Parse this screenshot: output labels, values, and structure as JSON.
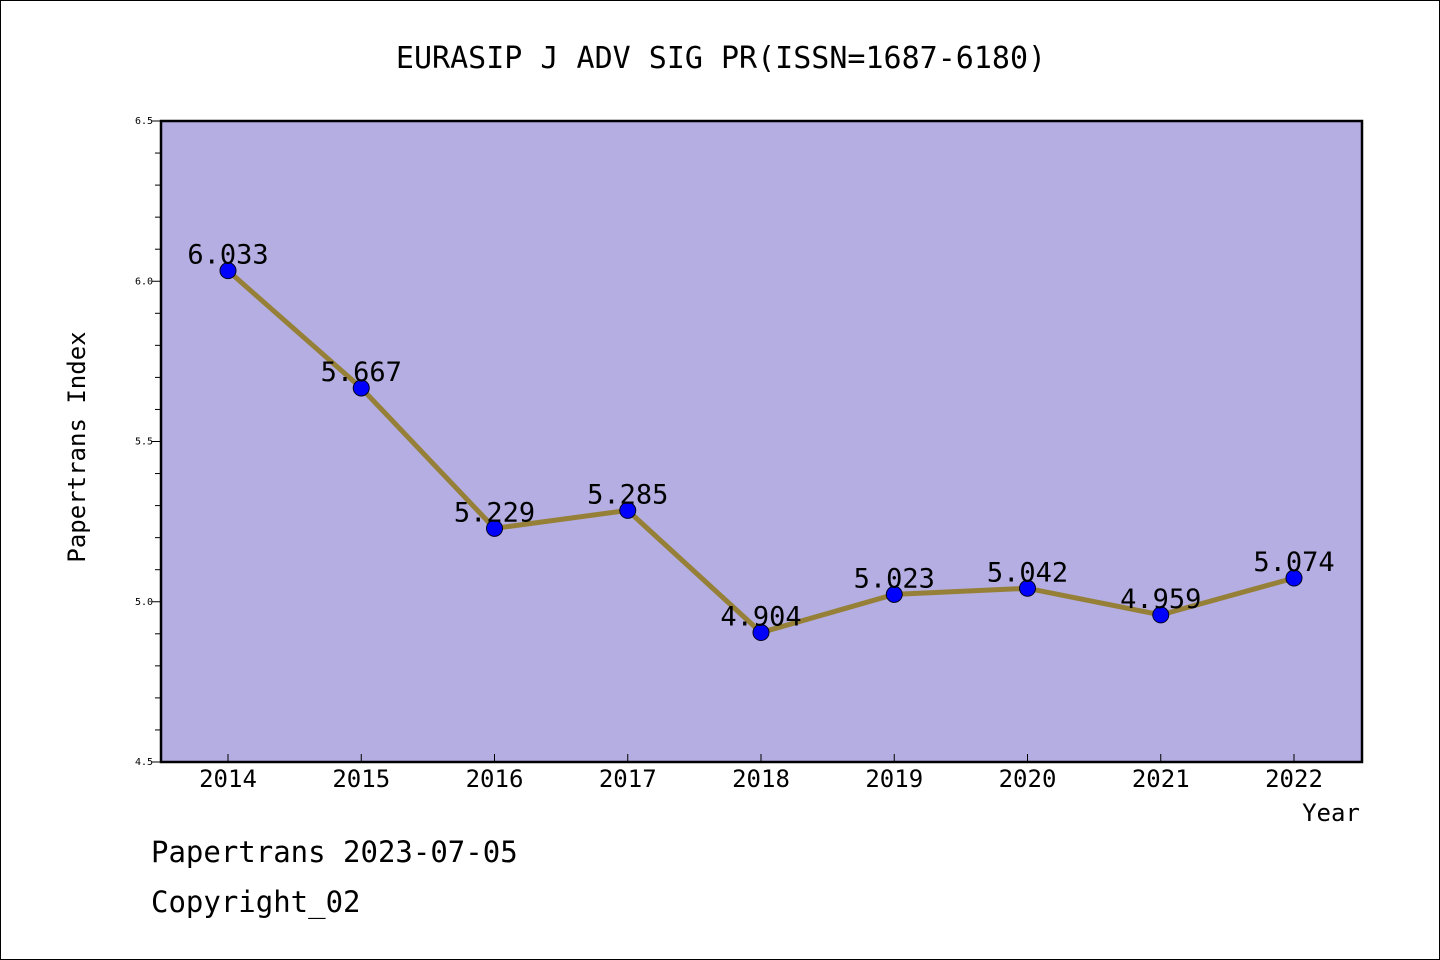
{
  "chart_data": {
    "type": "line",
    "title": "EURASIP J ADV SIG PR(ISSN=1687-6180)",
    "xlabel": "Year",
    "ylabel": "Papertrans Index",
    "categories": [
      "2014",
      "2015",
      "2016",
      "2017",
      "2018",
      "2019",
      "2020",
      "2021",
      "2022"
    ],
    "series": [
      {
        "values": [
          6.033,
          5.667,
          5.229,
          5.285,
          4.904,
          5.023,
          5.042,
          4.959,
          5.074
        ],
        "labels": [
          "6.033",
          "5.667",
          "5.229",
          "5.285",
          "4.904",
          "5.023",
          "5.042",
          "4.959",
          "5.074"
        ],
        "line_color": "#968038",
        "marker_color": "#0000ff"
      }
    ],
    "ylim": [
      4.5,
      6.5
    ],
    "yticks": [
      "4.5",
      "5.0",
      "5.5",
      "6.0",
      "6.5"
    ],
    "plot_background": "#b4aee2",
    "grid": false,
    "legend": "none"
  },
  "footer": {
    "line1": "Papertrans 2023-07-05",
    "line2": "Copyright_02"
  }
}
